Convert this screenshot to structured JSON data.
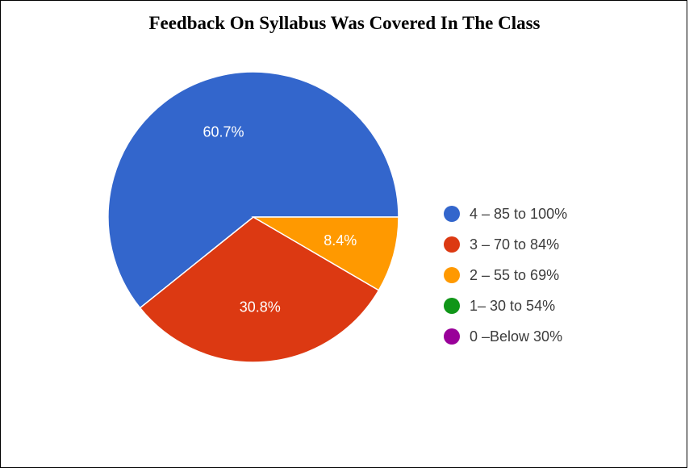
{
  "chart_data": {
    "type": "pie",
    "title": "Feedback On Syllabus Was Covered In The Class",
    "slices": [
      {
        "label": "4 – 85 to 100%",
        "value": 60.7,
        "display": "60.7%",
        "color": "#3366cc"
      },
      {
        "label": "3 – 70 to 84%",
        "value": 30.8,
        "display": "30.8%",
        "color": "#dc3912"
      },
      {
        "label": "2 – 55 to 69%",
        "value": 8.4,
        "display": "8.4%",
        "color": "#ff9900"
      },
      {
        "label": "1– 30 to 54%",
        "value": 0,
        "display": "",
        "color": "#109618"
      },
      {
        "label": "0 –Below 30%",
        "value": 0,
        "display": "",
        "color": "#990099"
      }
    ],
    "legend_position": "right"
  }
}
